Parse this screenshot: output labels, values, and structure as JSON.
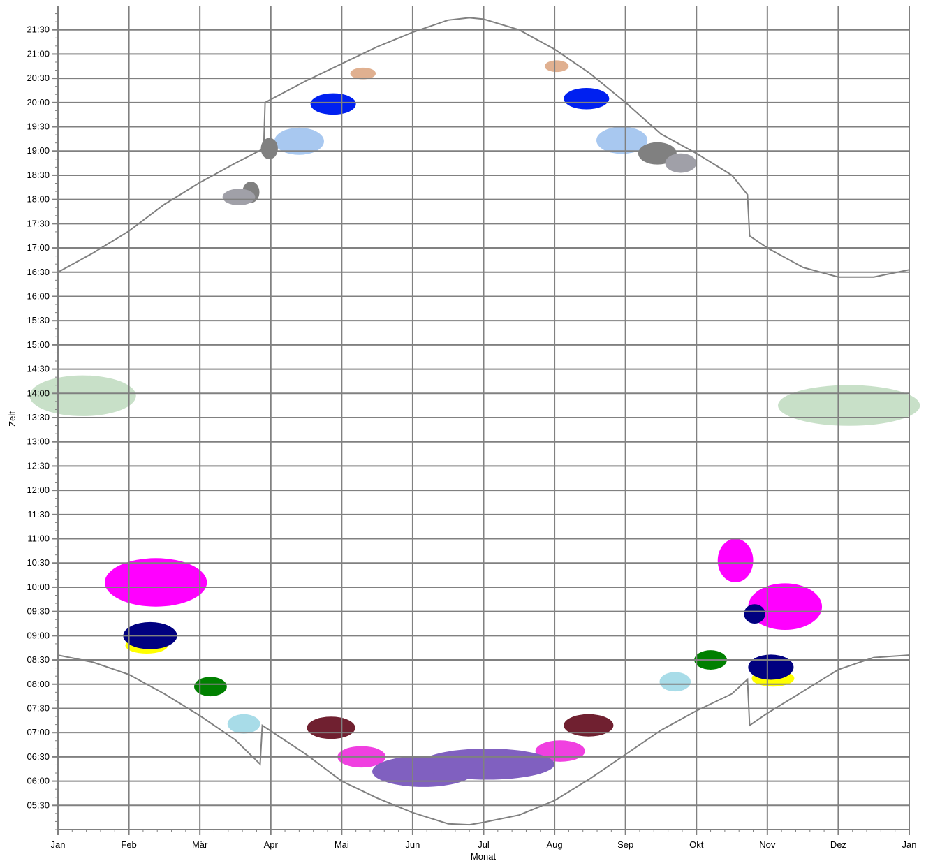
{
  "chart_data": {
    "type": "area",
    "title": "",
    "xlabel": "Monat",
    "ylabel": "Zeit",
    "x_ticks": [
      "Jan",
      "Feb",
      "Mär",
      "Apr",
      "Mai",
      "Jun",
      "Jul",
      "Aug",
      "Sep",
      "Okt",
      "Nov",
      "Dez",
      "Jan"
    ],
    "y_ticks": [
      "05:30",
      "06:00",
      "06:30",
      "07:00",
      "07:30",
      "08:00",
      "08:30",
      "09:00",
      "09:30",
      "10:00",
      "10:30",
      "11:00",
      "11:30",
      "12:00",
      "12:30",
      "13:00",
      "13:30",
      "14:00",
      "14:30",
      "15:00",
      "15:30",
      "16:00",
      "16:30",
      "17:00",
      "17:30",
      "18:00",
      "18:30",
      "19:00",
      "19:30",
      "20:00",
      "20:30",
      "21:00",
      "21:30"
    ],
    "x_range_month": [
      0,
      12
    ],
    "y_range_hours": [
      5.0,
      22.0
    ],
    "grid": true,
    "legend": "none",
    "colors": {
      "grid": "#808080",
      "sun_curve": "#808080"
    },
    "sunset_curve": [
      [
        0,
        16.5
      ],
      [
        0.5,
        16.9
      ],
      [
        1,
        17.35
      ],
      [
        1.5,
        17.9
      ],
      [
        2,
        18.35
      ],
      [
        2.5,
        18.75
      ],
      [
        2.9,
        19.05
      ],
      [
        2.92,
        20.0
      ],
      [
        3.5,
        20.45
      ],
      [
        4,
        20.8
      ],
      [
        4.5,
        21.15
      ],
      [
        5,
        21.45
      ],
      [
        5.5,
        21.7
      ],
      [
        5.8,
        21.75
      ],
      [
        6,
        21.72
      ],
      [
        6.5,
        21.5
      ],
      [
        7,
        21.1
      ],
      [
        7.5,
        20.6
      ],
      [
        8,
        20.0
      ],
      [
        8.5,
        19.35
      ],
      [
        9,
        18.95
      ],
      [
        9.5,
        18.5
      ],
      [
        9.72,
        18.1
      ],
      [
        9.75,
        17.25
      ],
      [
        10,
        17.0
      ],
      [
        10.5,
        16.6
      ],
      [
        11,
        16.4
      ],
      [
        11.5,
        16.4
      ],
      [
        12,
        16.55
      ]
    ],
    "sunrise_curve": [
      [
        0,
        8.6
      ],
      [
        0.5,
        8.45
      ],
      [
        1,
        8.2
      ],
      [
        1.5,
        7.8
      ],
      [
        2,
        7.35
      ],
      [
        2.5,
        6.85
      ],
      [
        2.85,
        6.35
      ],
      [
        2.88,
        7.15
      ],
      [
        3.5,
        6.55
      ],
      [
        4,
        6.0
      ],
      [
        4.5,
        5.65
      ],
      [
        5,
        5.35
      ],
      [
        5.5,
        5.12
      ],
      [
        5.8,
        5.1
      ],
      [
        6,
        5.15
      ],
      [
        6.5,
        5.3
      ],
      [
        7,
        5.6
      ],
      [
        7.5,
        6.05
      ],
      [
        8,
        6.55
      ],
      [
        8.5,
        7.05
      ],
      [
        9,
        7.45
      ],
      [
        9.5,
        7.8
      ],
      [
        9.72,
        8.1
      ],
      [
        9.75,
        7.15
      ],
      [
        10,
        7.4
      ],
      [
        10.5,
        7.85
      ],
      [
        11,
        8.3
      ],
      [
        11.5,
        8.55
      ],
      [
        12,
        8.6
      ]
    ],
    "blobs": [
      {
        "color": "#c8e0c8",
        "cx": 0.35,
        "cy": 13.95,
        "rx": 0.75,
        "ry": 0.42
      },
      {
        "color": "#c8e0c8",
        "cx": 11.15,
        "cy": 13.75,
        "rx": 1.0,
        "ry": 0.42
      },
      {
        "color": "#ff00ff",
        "cx": 1.38,
        "cy": 10.1,
        "rx": 0.72,
        "ry": 0.5
      },
      {
        "color": "#ff00ff",
        "cx": 9.55,
        "cy": 10.55,
        "rx": 0.25,
        "ry": 0.45
      },
      {
        "color": "#ff00ff",
        "cx": 10.25,
        "cy": 9.6,
        "rx": 0.52,
        "ry": 0.48
      },
      {
        "color": "#ffff00",
        "cx": 1.25,
        "cy": 8.8,
        "rx": 0.3,
        "ry": 0.17
      },
      {
        "color": "#000080",
        "cx": 1.3,
        "cy": 9.0,
        "rx": 0.38,
        "ry": 0.28
      },
      {
        "color": "#ffff00",
        "cx": 10.08,
        "cy": 8.12,
        "rx": 0.3,
        "ry": 0.17
      },
      {
        "color": "#000080",
        "cx": 10.05,
        "cy": 8.35,
        "rx": 0.32,
        "ry": 0.26
      },
      {
        "color": "#000080",
        "cx": 9.82,
        "cy": 9.45,
        "rx": 0.15,
        "ry": 0.2
      },
      {
        "color": "#008000",
        "cx": 2.15,
        "cy": 7.95,
        "rx": 0.23,
        "ry": 0.2
      },
      {
        "color": "#008000",
        "cx": 9.2,
        "cy": 8.5,
        "rx": 0.23,
        "ry": 0.2
      },
      {
        "color": "#a8dce8",
        "cx": 2.62,
        "cy": 7.18,
        "rx": 0.23,
        "ry": 0.2
      },
      {
        "color": "#a8dce8",
        "cx": 8.7,
        "cy": 8.05,
        "rx": 0.22,
        "ry": 0.2
      },
      {
        "color": "#702030",
        "cx": 3.85,
        "cy": 7.1,
        "rx": 0.34,
        "ry": 0.23
      },
      {
        "color": "#702030",
        "cx": 7.48,
        "cy": 7.15,
        "rx": 0.35,
        "ry": 0.23
      },
      {
        "color": "#f040e0",
        "cx": 4.28,
        "cy": 6.5,
        "rx": 0.34,
        "ry": 0.22
      },
      {
        "color": "#f040e0",
        "cx": 7.08,
        "cy": 6.62,
        "rx": 0.35,
        "ry": 0.22
      },
      {
        "color": "#8060c0",
        "cx": 5.15,
        "cy": 6.2,
        "rx": 0.72,
        "ry": 0.32
      },
      {
        "color": "#8060c0",
        "cx": 6.05,
        "cy": 6.35,
        "rx": 0.95,
        "ry": 0.32
      },
      {
        "color": "#a8c8f0",
        "cx": 3.4,
        "cy": 19.2,
        "rx": 0.35,
        "ry": 0.28
      },
      {
        "color": "#a8c8f0",
        "cx": 7.95,
        "cy": 19.22,
        "rx": 0.36,
        "ry": 0.28
      },
      {
        "color": "#0020f0",
        "cx": 3.88,
        "cy": 19.97,
        "rx": 0.32,
        "ry": 0.22
      },
      {
        "color": "#0020f0",
        "cx": 7.45,
        "cy": 20.08,
        "rx": 0.32,
        "ry": 0.22
      },
      {
        "color": "#e0b090",
        "cx": 4.3,
        "cy": 20.6,
        "rx": 0.18,
        "ry": 0.12
      },
      {
        "color": "#e0b090",
        "cx": 7.03,
        "cy": 20.75,
        "rx": 0.17,
        "ry": 0.12
      },
      {
        "color": "#808080",
        "cx": 2.72,
        "cy": 18.15,
        "rx": 0.12,
        "ry": 0.22
      },
      {
        "color": "#808080",
        "cx": 2.98,
        "cy": 19.05,
        "rx": 0.12,
        "ry": 0.22
      },
      {
        "color": "#808080",
        "cx": 8.45,
        "cy": 18.95,
        "rx": 0.27,
        "ry": 0.23
      },
      {
        "color": "#a0a0a8",
        "cx": 2.55,
        "cy": 18.05,
        "rx": 0.23,
        "ry": 0.17
      },
      {
        "color": "#a0a0a8",
        "cx": 8.78,
        "cy": 18.75,
        "rx": 0.22,
        "ry": 0.2
      }
    ]
  }
}
